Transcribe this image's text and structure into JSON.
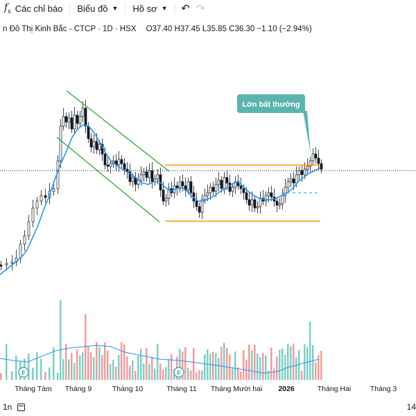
{
  "toolbar": {
    "indicators_label": "Các chỉ báo",
    "chart_label": "Biểu đồ",
    "profile_label": "Hồ sơ"
  },
  "legend": {
    "title": "n Đô Thị Kinh Bắc - CTCP · 1D · HSX",
    "ohlc": "O37.40 H37.45 L35.85 C36.30 −1.10 (−2.94%)"
  },
  "annotation": {
    "text": "Lớn bất thường",
    "color": "#5ab5b0"
  },
  "x_axis": {
    "labels": [
      "Tháng Tám",
      "Tháng 9",
      "Tháng 10",
      "Tháng 11",
      "Tháng Mười hai",
      "2026",
      "Tháng Hai",
      "Tháng 3"
    ]
  },
  "bottom": {
    "interval": "1n",
    "right_text": "14"
  },
  "colors": {
    "up": "#26a69a",
    "down": "#ef5350",
    "candle": "#131722",
    "ma": "#2196f3",
    "channel": "#4caf50",
    "range": "#ff9800",
    "vol_up": "#7ccfc6",
    "vol_down": "#f49a9d"
  },
  "chart_data": {
    "type": "candlestick",
    "title": "",
    "x_labels": [
      "Tháng Tám",
      "Tháng 9",
      "Tháng 10",
      "Tháng 11",
      "Tháng Mười hai",
      "2026",
      "Tháng Hai",
      "Tháng 3"
    ],
    "last_close": 36.3,
    "last_open": 37.4,
    "last_high": 37.45,
    "last_low": 35.85,
    "change": -1.1,
    "change_pct": -2.94
  }
}
